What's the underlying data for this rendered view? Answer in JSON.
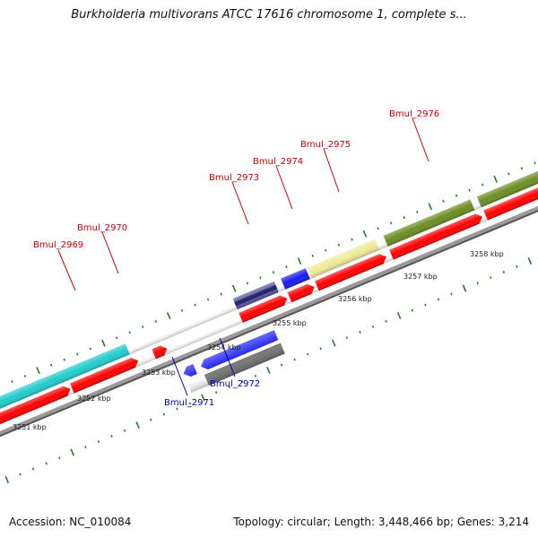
{
  "title": "Burkholderia multivorans ATCC 17616 chromosome 1, complete s...",
  "footer": {
    "accession": "Accession: NC_010084",
    "summary": "Topology: circular; Length: 3,448,466 bp; Genes: 3,214"
  },
  "scale": {
    "unit_suffix": "kbp",
    "ticks": [
      "3251 kbp",
      "3252 kbp",
      "3253 kbp",
      "3254 kbp",
      "3255 kbp",
      "3256 kbp",
      "3257 kbp",
      "3258 kbp"
    ]
  },
  "colors": {
    "forward_label": "#cc0000",
    "reverse_label": "#0000aa",
    "cds": "#ff0000",
    "gene_cyan": "#22cccc",
    "gene_blue": "#1a1aee",
    "gene_gray": "#777777",
    "gene_navy": "#5555aa",
    "gene_yellow": "#eeea99",
    "gene_olive": "#6b8e23",
    "tick_green": "#2a7a2a",
    "backbone": "#999999"
  },
  "genes": {
    "forward": [
      "Bmul_2969",
      "Bmul_2970",
      "Bmul_2973",
      "Bmul_2974",
      "Bmul_2975",
      "Bmul_2976"
    ],
    "reverse": [
      "Bmul_2971",
      "Bmul_2972"
    ]
  }
}
